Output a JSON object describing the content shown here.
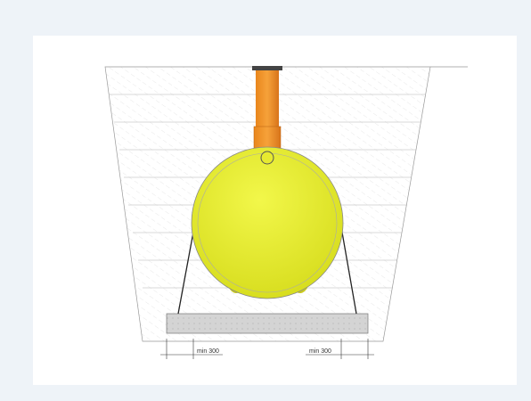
{
  "dimensions": [
    {
      "label": "min 300"
    },
    {
      "label": "min 300"
    }
  ]
}
